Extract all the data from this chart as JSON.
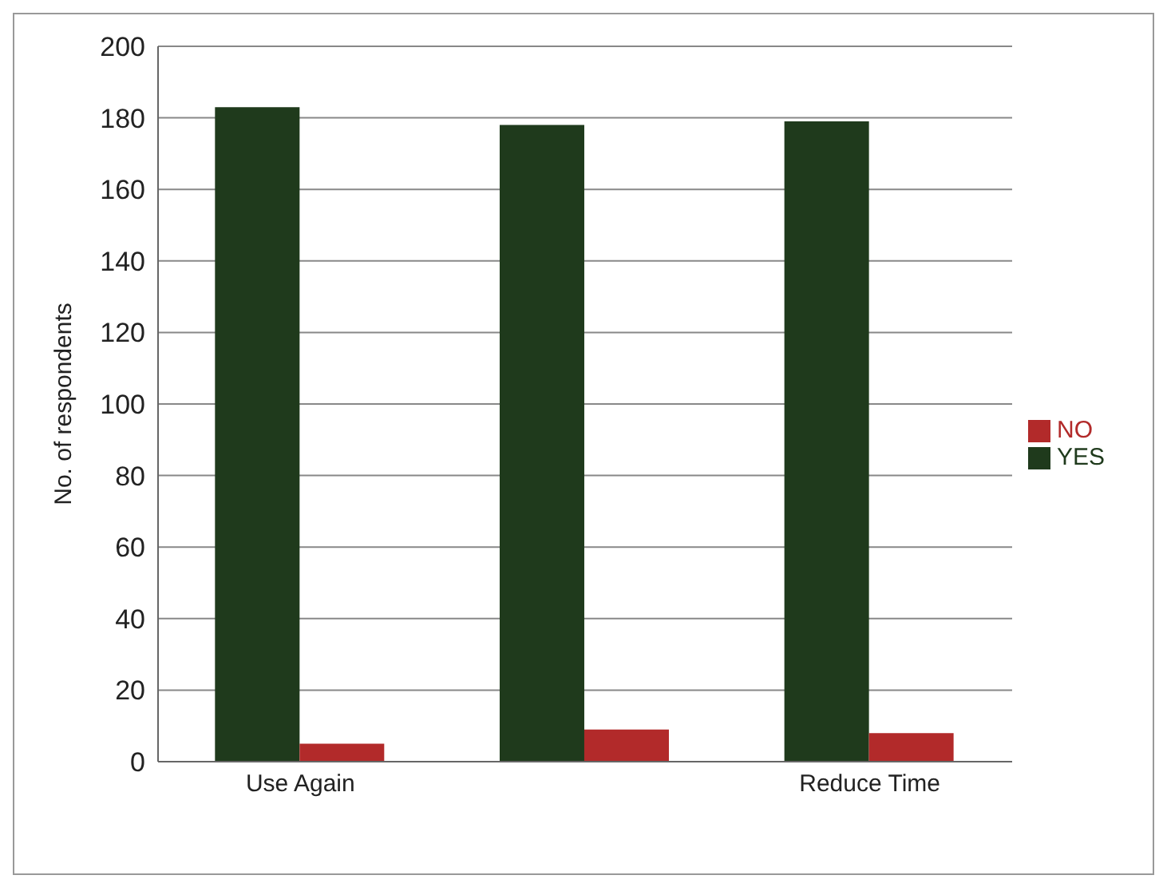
{
  "chart_data": {
    "type": "bar",
    "ylabel": "No. of respondents",
    "categories": [
      "Use Again",
      null,
      "Reduce Time"
    ],
    "series": [
      {
        "name": "YES",
        "color": "#1f3a1c",
        "values": [
          183,
          178,
          179
        ]
      },
      {
        "name": "NO",
        "color": "#b22a2a",
        "values": [
          5,
          9,
          8
        ]
      }
    ],
    "ylim": [
      0,
      200
    ],
    "yticks": [
      0,
      20,
      40,
      60,
      80,
      100,
      120,
      140,
      160,
      180,
      200
    ],
    "grid": "y",
    "legend": "right"
  }
}
